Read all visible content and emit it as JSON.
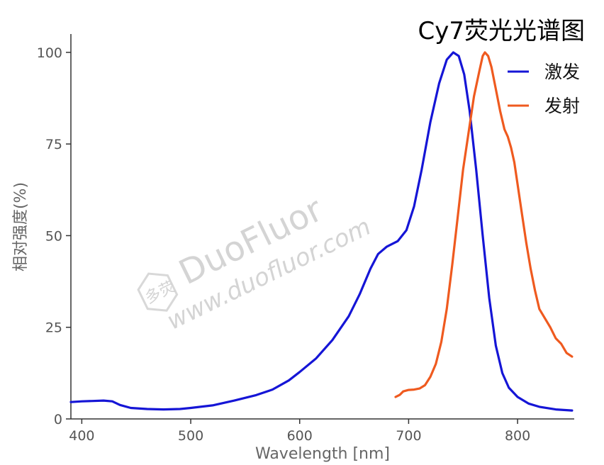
{
  "chart_data": {
    "type": "line",
    "title": "Cy7荧光光谱图",
    "xlabel": "Wavelength [nm]",
    "ylabel": "相对强度(%)",
    "xlim": [
      390,
      852
    ],
    "ylim": [
      0,
      105
    ],
    "x_ticks": [
      "400",
      "500",
      "600",
      "700",
      "800"
    ],
    "y_ticks": [
      "0",
      "25",
      "50",
      "75",
      "100"
    ],
    "grid": false,
    "legend_position": "top-right",
    "series": [
      {
        "name": "激发",
        "color": "#1515d6",
        "points": [
          [
            390,
            4.6
          ],
          [
            400,
            4.8
          ],
          [
            410,
            4.9
          ],
          [
            420,
            5.0
          ],
          [
            428,
            4.8
          ],
          [
            435,
            3.8
          ],
          [
            445,
            3.0
          ],
          [
            460,
            2.7
          ],
          [
            475,
            2.6
          ],
          [
            490,
            2.7
          ],
          [
            500,
            3.0
          ],
          [
            520,
            3.7
          ],
          [
            540,
            5.0
          ],
          [
            560,
            6.5
          ],
          [
            575,
            8.0
          ],
          [
            590,
            10.5
          ],
          [
            600,
            12.8
          ],
          [
            615,
            16.5
          ],
          [
            630,
            21.5
          ],
          [
            645,
            28.0
          ],
          [
            655,
            34.0
          ],
          [
            665,
            41.0
          ],
          [
            672,
            45.0
          ],
          [
            680,
            47.0
          ],
          [
            690,
            48.5
          ],
          [
            698,
            51.5
          ],
          [
            705,
            58.0
          ],
          [
            712,
            68.0
          ],
          [
            720,
            81.0
          ],
          [
            728,
            91.5
          ],
          [
            735,
            98.0
          ],
          [
            741,
            100.0
          ],
          [
            746,
            99.0
          ],
          [
            751,
            94.0
          ],
          [
            756,
            84.0
          ],
          [
            762,
            68.0
          ],
          [
            768,
            50.0
          ],
          [
            774,
            33.0
          ],
          [
            780,
            20.0
          ],
          [
            786,
            12.5
          ],
          [
            792,
            8.5
          ],
          [
            800,
            6.0
          ],
          [
            810,
            4.2
          ],
          [
            820,
            3.3
          ],
          [
            835,
            2.6
          ],
          [
            850,
            2.3
          ]
        ]
      },
      {
        "name": "发射",
        "color": "#ef5a1f",
        "points": [
          [
            688,
            6.0
          ],
          [
            692,
            6.6
          ],
          [
            695,
            7.5
          ],
          [
            700,
            7.9
          ],
          [
            705,
            8.0
          ],
          [
            710,
            8.3
          ],
          [
            715,
            9.2
          ],
          [
            720,
            11.5
          ],
          [
            725,
            15.0
          ],
          [
            730,
            21.0
          ],
          [
            735,
            30.0
          ],
          [
            740,
            42.0
          ],
          [
            745,
            55.0
          ],
          [
            750,
            68.0
          ],
          [
            755,
            78.0
          ],
          [
            760,
            88.0
          ],
          [
            765,
            95.0
          ],
          [
            768,
            99.0
          ],
          [
            770,
            100.0
          ],
          [
            773,
            99.0
          ],
          [
            776,
            96.0
          ],
          [
            780,
            90.0
          ],
          [
            784,
            84.0
          ],
          [
            788,
            79.0
          ],
          [
            791,
            77.0
          ],
          [
            794,
            74.0
          ],
          [
            797,
            70.0
          ],
          [
            800,
            64.0
          ],
          [
            804,
            56.0
          ],
          [
            808,
            48.0
          ],
          [
            812,
            41.0
          ],
          [
            816,
            35.0
          ],
          [
            820,
            30.0
          ],
          [
            825,
            27.5
          ],
          [
            830,
            25.0
          ],
          [
            835,
            22.0
          ],
          [
            840,
            20.5
          ],
          [
            845,
            18.0
          ],
          [
            850,
            17.0
          ]
        ]
      }
    ]
  },
  "watermark": {
    "brand": "DuoFluor",
    "url": "www.duofluor.com",
    "logo_text": "多荧"
  }
}
